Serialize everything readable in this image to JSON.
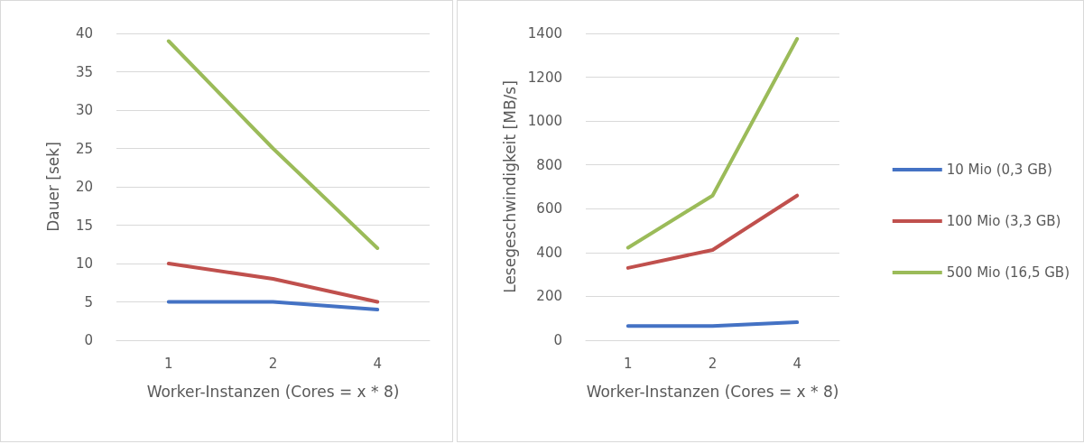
{
  "chart_data": [
    {
      "type": "line",
      "xlabel": "Worker-Instanzen (Cores = x * 8)",
      "ylabel": "Dauer [sek]",
      "categories": [
        "1",
        "2",
        "4"
      ],
      "series": [
        {
          "color": "#4472c4",
          "values": [
            5,
            5,
            4
          ]
        },
        {
          "color": "#c0504d",
          "values": [
            10,
            8,
            5
          ]
        },
        {
          "color": "#9bbb59",
          "values": [
            39,
            25,
            12
          ]
        }
      ],
      "ylim": [
        0,
        40
      ],
      "yticks": [
        0,
        5,
        10,
        15,
        20,
        25,
        30,
        35,
        40
      ],
      "grid": "y",
      "legend": false,
      "marker": "none"
    },
    {
      "type": "line",
      "xlabel": "Worker-Instanzen (Cores = x * 8)",
      "ylabel": "Lesegeschwindigkeit [MB/s]",
      "categories": [
        "1",
        "2",
        "4"
      ],
      "series": [
        {
          "name": "10 Mio (0,3 GB)",
          "color": "#4472c4",
          "values": [
            65,
            65,
            82
          ]
        },
        {
          "name": "100 Mio (3,3 GB)",
          "color": "#c0504d",
          "values": [
            330,
            412,
            660
          ]
        },
        {
          "name": "500 Mio (16,5 GB)",
          "color": "#9bbb59",
          "values": [
            422,
            660,
            1375
          ]
        }
      ],
      "ylim": [
        0,
        1400
      ],
      "yticks": [
        0,
        200,
        400,
        600,
        800,
        1000,
        1200,
        1400
      ],
      "grid": "y",
      "legend": "right",
      "marker": "none"
    }
  ]
}
